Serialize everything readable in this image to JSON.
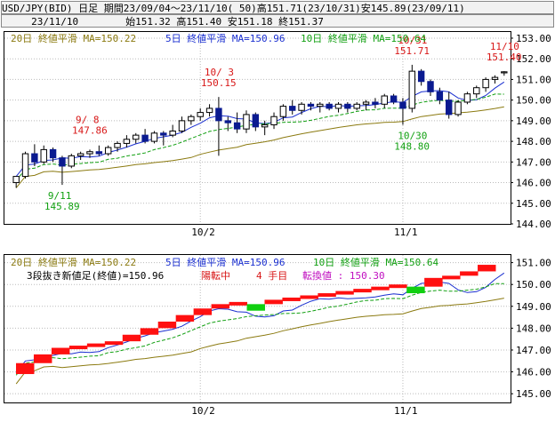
{
  "header": {
    "line1": "USD/JPY(BID) 日足 期間23/09/04～23/11/10( 50)高151.71(23/10/31)安145.89(23/09/11)",
    "line2": "     23/11/10        始151.32 高151.40 安151.18 終151.37"
  },
  "colors": {
    "ma20": "#8b7a10",
    "ma5": "#1a2fd0",
    "ma10": "#12a012",
    "candle_up": "#0a1a90",
    "annotation_high": "#d81818",
    "annotation_low": "#12a012",
    "brick_up": "#ff1010",
    "brick_down": "#10d010"
  },
  "chart_data": [
    {
      "type": "candlestick",
      "legend": [
        {
          "name": "20日 終値平滑 MA=150.22",
          "color": "#8b7a10"
        },
        {
          "name": "5日 終値平滑 MA=150.96",
          "color": "#1a2fd0"
        },
        {
          "name": "10日 終値平滑 MA=150.64",
          "color": "#12a012"
        }
      ],
      "x_ticks": [
        "10/2",
        "11/1"
      ],
      "y_ticks": [
        144.0,
        145.0,
        146.0,
        147.0,
        148.0,
        149.0,
        150.0,
        151.0,
        152.0,
        153.0
      ],
      "ylim": [
        144.0,
        153.3
      ],
      "grid": true,
      "candles": [
        {
          "o": 146.0,
          "h": 146.3,
          "l": 145.75,
          "c": 146.3
        },
        {
          "o": 146.3,
          "h": 147.5,
          "l": 146.2,
          "c": 147.4
        },
        {
          "o": 147.4,
          "h": 147.86,
          "l": 146.8,
          "c": 147.0
        },
        {
          "o": 147.0,
          "h": 147.8,
          "l": 146.9,
          "c": 147.6
        },
        {
          "o": 147.6,
          "h": 147.7,
          "l": 147.0,
          "c": 147.2
        },
        {
          "o": 147.2,
          "h": 147.3,
          "l": 145.89,
          "c": 146.8
        },
        {
          "o": 146.8,
          "h": 147.4,
          "l": 146.7,
          "c": 147.3
        },
        {
          "o": 147.3,
          "h": 147.5,
          "l": 147.1,
          "c": 147.4
        },
        {
          "o": 147.4,
          "h": 147.6,
          "l": 147.2,
          "c": 147.5
        },
        {
          "o": 147.5,
          "h": 147.8,
          "l": 147.3,
          "c": 147.4
        },
        {
          "o": 147.4,
          "h": 147.8,
          "l": 147.3,
          "c": 147.7
        },
        {
          "o": 147.7,
          "h": 148.0,
          "l": 147.5,
          "c": 147.9
        },
        {
          "o": 147.9,
          "h": 148.3,
          "l": 147.7,
          "c": 148.1
        },
        {
          "o": 148.1,
          "h": 148.4,
          "l": 147.9,
          "c": 148.3
        },
        {
          "o": 148.3,
          "h": 148.6,
          "l": 147.9,
          "c": 148.0
        },
        {
          "o": 148.0,
          "h": 148.5,
          "l": 147.9,
          "c": 148.4
        },
        {
          "o": 148.4,
          "h": 148.5,
          "l": 147.8,
          "c": 148.3
        },
        {
          "o": 148.3,
          "h": 148.8,
          "l": 148.2,
          "c": 148.5
        },
        {
          "o": 148.5,
          "h": 149.2,
          "l": 148.4,
          "c": 149.0
        },
        {
          "o": 149.0,
          "h": 149.3,
          "l": 148.8,
          "c": 149.2
        },
        {
          "o": 149.2,
          "h": 149.6,
          "l": 149.0,
          "c": 149.4
        },
        {
          "o": 149.4,
          "h": 149.8,
          "l": 149.2,
          "c": 149.6
        },
        {
          "o": 149.6,
          "h": 150.15,
          "l": 147.3,
          "c": 149.0
        },
        {
          "o": 149.0,
          "h": 149.2,
          "l": 148.5,
          "c": 148.9
        },
        {
          "o": 148.9,
          "h": 149.4,
          "l": 148.4,
          "c": 148.6
        },
        {
          "o": 148.6,
          "h": 149.5,
          "l": 148.4,
          "c": 149.3
        },
        {
          "o": 149.3,
          "h": 149.4,
          "l": 148.5,
          "c": 148.7
        },
        {
          "o": 148.7,
          "h": 149.0,
          "l": 148.3,
          "c": 148.8
        },
        {
          "o": 148.8,
          "h": 149.4,
          "l": 148.6,
          "c": 149.2
        },
        {
          "o": 149.2,
          "h": 149.8,
          "l": 149.0,
          "c": 149.7
        },
        {
          "o": 149.7,
          "h": 150.0,
          "l": 149.3,
          "c": 149.5
        },
        {
          "o": 149.5,
          "h": 149.9,
          "l": 149.3,
          "c": 149.8
        },
        {
          "o": 149.8,
          "h": 149.9,
          "l": 149.5,
          "c": 149.7
        },
        {
          "o": 149.7,
          "h": 149.9,
          "l": 149.4,
          "c": 149.8
        },
        {
          "o": 149.8,
          "h": 149.9,
          "l": 149.5,
          "c": 149.6
        },
        {
          "o": 149.6,
          "h": 149.9,
          "l": 149.4,
          "c": 149.8
        },
        {
          "o": 149.8,
          "h": 149.9,
          "l": 149.4,
          "c": 149.6
        },
        {
          "o": 149.6,
          "h": 149.9,
          "l": 149.5,
          "c": 149.8
        },
        {
          "o": 149.8,
          "h": 150.0,
          "l": 149.5,
          "c": 149.9
        },
        {
          "o": 149.9,
          "h": 150.1,
          "l": 149.6,
          "c": 149.8
        },
        {
          "o": 149.8,
          "h": 150.3,
          "l": 149.6,
          "c": 150.2
        },
        {
          "o": 150.2,
          "h": 150.3,
          "l": 149.8,
          "c": 149.9
        },
        {
          "o": 149.9,
          "h": 150.1,
          "l": 148.8,
          "c": 149.6
        },
        {
          "o": 149.6,
          "h": 151.71,
          "l": 149.4,
          "c": 151.4
        },
        {
          "o": 151.4,
          "h": 151.5,
          "l": 150.7,
          "c": 150.9
        },
        {
          "o": 150.9,
          "h": 151.0,
          "l": 150.2,
          "c": 150.4
        },
        {
          "o": 150.4,
          "h": 150.6,
          "l": 149.8,
          "c": 150.0
        },
        {
          "o": 150.0,
          "h": 150.4,
          "l": 149.1,
          "c": 149.3
        },
        {
          "o": 149.3,
          "h": 150.0,
          "l": 149.2,
          "c": 149.9
        },
        {
          "o": 149.9,
          "h": 150.4,
          "l": 149.8,
          "c": 150.3
        },
        {
          "o": 150.3,
          "h": 150.7,
          "l": 150.1,
          "c": 150.6
        },
        {
          "o": 150.6,
          "h": 151.1,
          "l": 150.4,
          "c": 151.0
        },
        {
          "o": 151.0,
          "h": 151.2,
          "l": 150.8,
          "c": 151.1
        },
        {
          "o": 151.32,
          "h": 151.4,
          "l": 151.18,
          "c": 151.37
        }
      ],
      "annotations": [
        {
          "date": "9/ 8",
          "value": "147.86",
          "kind": "high"
        },
        {
          "date": "9/11",
          "value": "145.89",
          "kind": "low"
        },
        {
          "date": "10/ 3",
          "value": "150.15",
          "kind": "high"
        },
        {
          "date": "10/31",
          "value": "151.71",
          "kind": "high"
        },
        {
          "date": "10/30",
          "value": "148.80",
          "kind": "low"
        },
        {
          "date": "11/10",
          "value": "151.40",
          "kind": "high"
        }
      ]
    },
    {
      "type": "three-line-break",
      "legend": [
        {
          "name": "20日 終値平滑 MA=150.22",
          "color": "#8b7a10"
        },
        {
          "name": "5日 終値平滑 MA=150.96",
          "color": "#1a2fd0"
        },
        {
          "name": "10日 終値平滑 MA=150.64",
          "color": "#12a012"
        }
      ],
      "info": {
        "prefix": "3段抜き新値足(終値)=150.96",
        "direction": "陽転中",
        "count": "4 手目",
        "reversal": "転換値 : 150.30"
      },
      "x_ticks": [
        "10/2",
        "11/1"
      ],
      "y_ticks": [
        145.0,
        146.0,
        147.0,
        148.0,
        149.0,
        150.0,
        151.0
      ],
      "ylim": [
        144.6,
        151.35
      ],
      "grid": true,
      "bricks": [
        {
          "lo": 145.9,
          "hi": 146.4,
          "dir": "up"
        },
        {
          "lo": 146.4,
          "hi": 146.8,
          "dir": "up"
        },
        {
          "lo": 146.8,
          "hi": 147.1,
          "dir": "up"
        },
        {
          "lo": 147.1,
          "hi": 147.2,
          "dir": "up"
        },
        {
          "lo": 147.2,
          "hi": 147.3,
          "dir": "up"
        },
        {
          "lo": 147.3,
          "hi": 147.4,
          "dir": "up"
        },
        {
          "lo": 147.4,
          "hi": 147.7,
          "dir": "up"
        },
        {
          "lo": 147.7,
          "hi": 148.0,
          "dir": "up"
        },
        {
          "lo": 148.0,
          "hi": 148.3,
          "dir": "up"
        },
        {
          "lo": 148.3,
          "hi": 148.6,
          "dir": "up"
        },
        {
          "lo": 148.6,
          "hi": 148.9,
          "dir": "up"
        },
        {
          "lo": 148.9,
          "hi": 149.1,
          "dir": "up"
        },
        {
          "lo": 149.1,
          "hi": 149.2,
          "dir": "up"
        },
        {
          "lo": 148.8,
          "hi": 149.1,
          "dir": "down"
        },
        {
          "lo": 149.1,
          "hi": 149.3,
          "dir": "up"
        },
        {
          "lo": 149.3,
          "hi": 149.4,
          "dir": "up"
        },
        {
          "lo": 149.4,
          "hi": 149.5,
          "dir": "up"
        },
        {
          "lo": 149.5,
          "hi": 149.6,
          "dir": "up"
        },
        {
          "lo": 149.6,
          "hi": 149.7,
          "dir": "up"
        },
        {
          "lo": 149.7,
          "hi": 149.8,
          "dir": "up"
        },
        {
          "lo": 149.8,
          "hi": 149.9,
          "dir": "up"
        },
        {
          "lo": 149.9,
          "hi": 150.0,
          "dir": "up"
        },
        {
          "lo": 149.6,
          "hi": 149.9,
          "dir": "down"
        },
        {
          "lo": 149.9,
          "hi": 150.3,
          "dir": "up"
        },
        {
          "lo": 150.3,
          "hi": 150.4,
          "dir": "up"
        },
        {
          "lo": 150.4,
          "hi": 150.6,
          "dir": "up"
        },
        {
          "lo": 150.6,
          "hi": 150.9,
          "dir": "up"
        }
      ]
    }
  ]
}
